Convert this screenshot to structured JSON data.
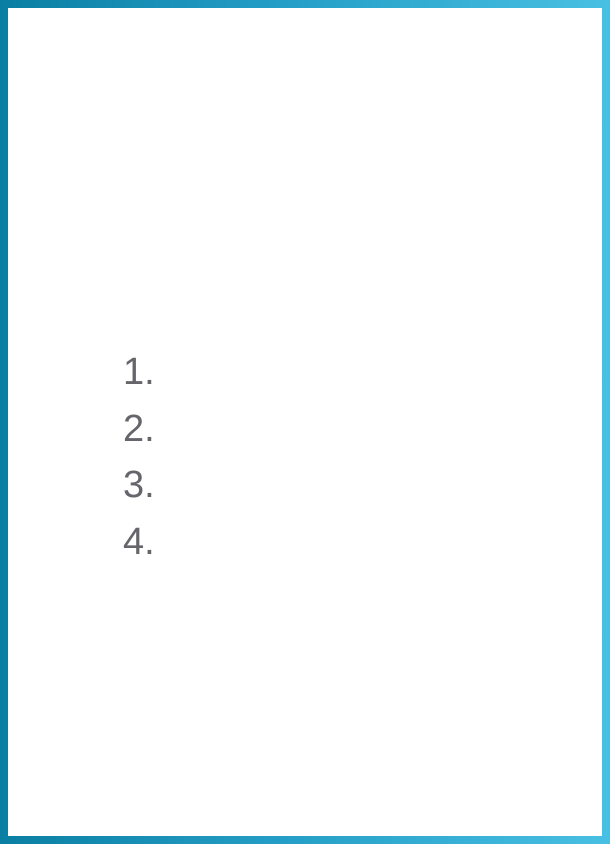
{
  "frame": {
    "gradient_start": "#0a7fa3",
    "gradient_end": "#48c0e3"
  },
  "list": {
    "text_color": "#66656c",
    "items": [
      {
        "number": "1."
      },
      {
        "number": "2."
      },
      {
        "number": "3."
      },
      {
        "number": "4."
      }
    ]
  }
}
